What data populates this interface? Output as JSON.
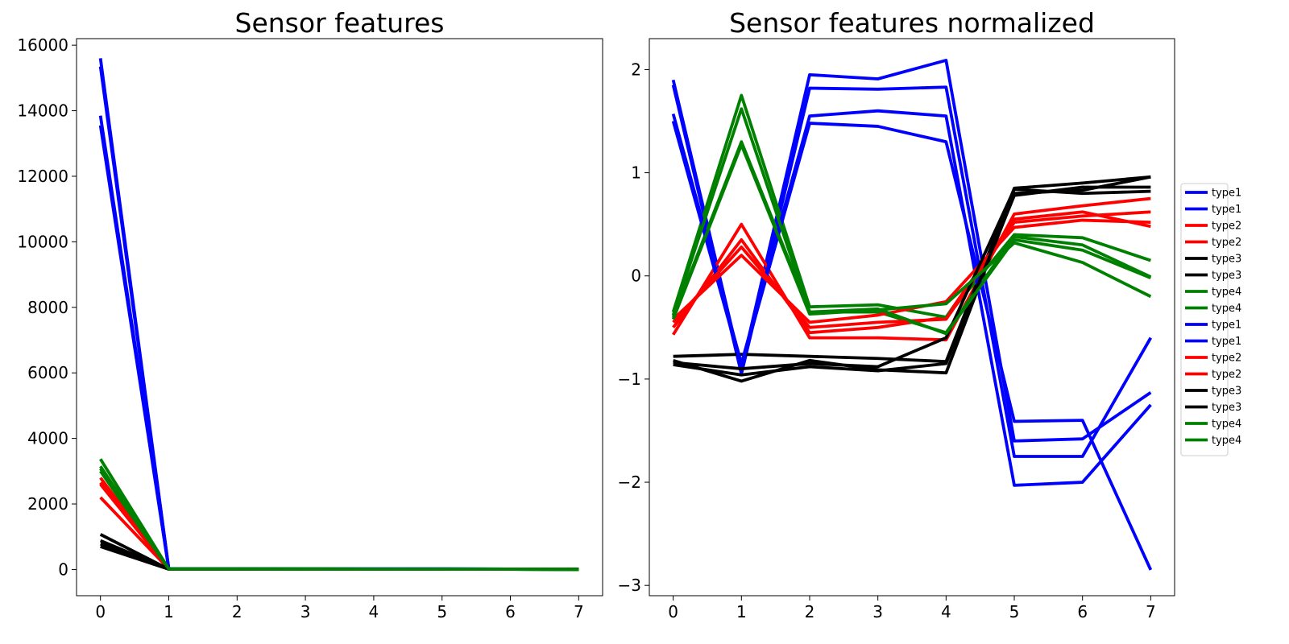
{
  "chart_data": [
    {
      "type": "line",
      "title": "Sensor features",
      "xlabel": "",
      "ylabel": "",
      "x": [
        0,
        1,
        2,
        3,
        4,
        5,
        6,
        7
      ],
      "xlim": [
        -0.35,
        7.35
      ],
      "ylim": [
        -800,
        16200
      ],
      "yticks": [
        0,
        2000,
        4000,
        6000,
        8000,
        10000,
        12000,
        14000,
        16000
      ],
      "grid": false,
      "series": [
        {
          "color": "#0000ff",
          "values": [
            15600,
            20,
            18,
            17,
            16,
            15,
            12,
            5
          ]
        },
        {
          "color": "#0000ff",
          "values": [
            15350,
            20,
            18,
            17,
            16,
            15,
            12,
            5
          ]
        },
        {
          "color": "#0000ff",
          "values": [
            13850,
            20,
            18,
            17,
            16,
            15,
            12,
            5
          ]
        },
        {
          "color": "#0000ff",
          "values": [
            13550,
            20,
            18,
            17,
            16,
            15,
            12,
            5
          ]
        },
        {
          "color": "#ff0000",
          "values": [
            2800,
            15,
            14,
            13,
            12,
            12,
            10,
            8
          ]
        },
        {
          "color": "#ff0000",
          "values": [
            2650,
            15,
            14,
            13,
            12,
            12,
            10,
            8
          ]
        },
        {
          "color": "#ff0000",
          "values": [
            2600,
            15,
            14,
            13,
            12,
            12,
            10,
            8
          ]
        },
        {
          "color": "#ff0000",
          "values": [
            2200,
            15,
            14,
            13,
            12,
            12,
            10,
            8
          ]
        },
        {
          "color": "#000000",
          "values": [
            1070,
            10,
            9,
            9,
            8,
            8,
            7,
            6
          ]
        },
        {
          "color": "#000000",
          "values": [
            880,
            10,
            9,
            9,
            8,
            8,
            7,
            6
          ]
        },
        {
          "color": "#000000",
          "values": [
            780,
            10,
            9,
            9,
            8,
            8,
            7,
            6
          ]
        },
        {
          "color": "#000000",
          "values": [
            700,
            10,
            9,
            9,
            8,
            8,
            7,
            6
          ]
        },
        {
          "color": "#008000",
          "values": [
            3370,
            18,
            16,
            15,
            14,
            12,
            8,
            3
          ]
        },
        {
          "color": "#008000",
          "values": [
            3150,
            18,
            16,
            15,
            14,
            12,
            8,
            3
          ]
        },
        {
          "color": "#008000",
          "values": [
            3080,
            18,
            16,
            15,
            14,
            12,
            8,
            3
          ]
        },
        {
          "color": "#008000",
          "values": [
            3000,
            18,
            16,
            15,
            14,
            12,
            8,
            3
          ]
        }
      ]
    },
    {
      "type": "line",
      "title": "Sensor features normalized",
      "xlabel": "",
      "ylabel": "",
      "x": [
        0,
        1,
        2,
        3,
        4,
        5,
        6,
        7
      ],
      "xlim": [
        -0.35,
        7.35
      ],
      "ylim": [
        -3.1,
        2.3
      ],
      "yticks": [
        -3,
        -2,
        -1,
        0,
        1,
        2
      ],
      "grid": false,
      "legend": "right",
      "series": [
        {
          "name": "type1",
          "color": "#0000ff",
          "values": [
            1.9,
            -0.9,
            1.95,
            1.91,
            2.09,
            -1.6,
            -1.58,
            -1.13
          ]
        },
        {
          "name": "type1",
          "color": "#0000ff",
          "values": [
            1.85,
            -0.95,
            1.82,
            1.81,
            1.83,
            -1.75,
            -1.75,
            -0.6
          ]
        },
        {
          "name": "type2",
          "color": "#ff0000",
          "values": [
            -0.57,
            0.5,
            -0.6,
            -0.6,
            -0.62,
            0.6,
            0.68,
            0.75
          ]
        },
        {
          "name": "type2",
          "color": "#ff0000",
          "values": [
            -0.5,
            0.35,
            -0.55,
            -0.5,
            -0.4,
            0.55,
            0.62,
            0.48
          ]
        },
        {
          "name": "type3",
          "color": "#000000",
          "values": [
            -0.78,
            -0.76,
            -0.78,
            -0.8,
            -0.83,
            0.85,
            0.9,
            0.96
          ]
        },
        {
          "name": "type3",
          "color": "#000000",
          "values": [
            -0.82,
            -1.02,
            -0.82,
            -0.91,
            -0.94,
            0.8,
            0.83,
            0.96
          ]
        },
        {
          "name": "type4",
          "color": "#008000",
          "values": [
            -0.35,
            1.75,
            -0.3,
            -0.28,
            -0.4,
            0.4,
            0.37,
            0.15
          ]
        },
        {
          "name": "type4",
          "color": "#008000",
          "values": [
            -0.4,
            1.3,
            -0.35,
            -0.35,
            -0.55,
            0.38,
            0.3,
            -0.01
          ]
        },
        {
          "name": "type1",
          "color": "#0000ff",
          "values": [
            1.57,
            -0.85,
            1.55,
            1.6,
            1.55,
            -2.03,
            -2.0,
            -1.25
          ]
        },
        {
          "name": "type1",
          "color": "#0000ff",
          "values": [
            1.5,
            -0.88,
            1.48,
            1.45,
            1.3,
            -1.41,
            -1.4,
            -2.85
          ]
        },
        {
          "name": "type2",
          "color": "#ff0000",
          "values": [
            -0.45,
            0.28,
            -0.5,
            -0.45,
            -0.42,
            0.52,
            0.58,
            0.62
          ]
        },
        {
          "name": "type2",
          "color": "#ff0000",
          "values": [
            -0.42,
            0.2,
            -0.45,
            -0.38,
            -0.25,
            0.47,
            0.54,
            0.52
          ]
        },
        {
          "name": "type3",
          "color": "#000000",
          "values": [
            -0.84,
            -0.9,
            -0.85,
            -0.88,
            -0.6,
            0.84,
            0.8,
            0.82
          ]
        },
        {
          "name": "type3",
          "color": "#000000",
          "values": [
            -0.86,
            -0.96,
            -0.88,
            -0.92,
            -0.85,
            0.78,
            0.86,
            0.86
          ]
        },
        {
          "name": "type4",
          "color": "#008000",
          "values": [
            -0.38,
            1.62,
            -0.35,
            -0.32,
            -0.56,
            0.35,
            0.25,
            -0.02
          ]
        },
        {
          "name": "type4",
          "color": "#008000",
          "values": [
            -0.42,
            1.27,
            -0.37,
            -0.33,
            -0.27,
            0.32,
            0.13,
            -0.2
          ]
        }
      ]
    }
  ]
}
